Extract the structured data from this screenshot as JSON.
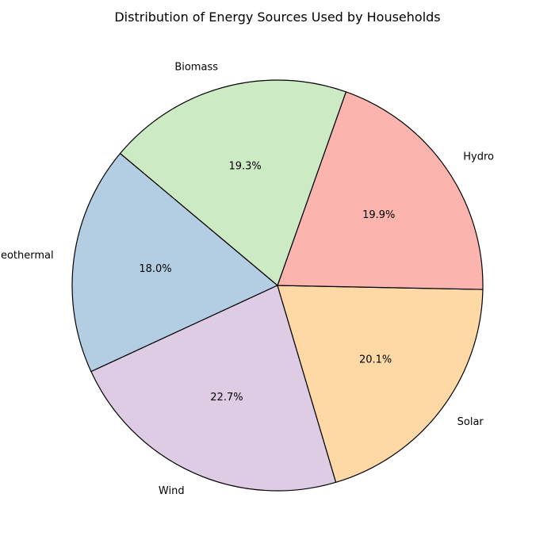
{
  "chart_data": {
    "type": "pie",
    "title": "Distribution of Energy Sources Used by Households",
    "start_angle_deg": 140,
    "direction": "counterclockwise",
    "slices": [
      {
        "label": "Geothermal",
        "value": 18.0,
        "pct_label": "18.0%",
        "color": "#b3cde3"
      },
      {
        "label": "Wind",
        "value": 22.7,
        "pct_label": "22.7%",
        "color": "#decbe4"
      },
      {
        "label": "Solar",
        "value": 20.1,
        "pct_label": "20.1%",
        "color": "#fed9a6"
      },
      {
        "label": "Hydro",
        "value": 19.9,
        "pct_label": "19.9%",
        "color": "#fbb4ae"
      },
      {
        "label": "Biomass",
        "value": 19.3,
        "pct_label": "19.3%",
        "color": "#ccebc5"
      }
    ],
    "edge_color": "#000000"
  }
}
